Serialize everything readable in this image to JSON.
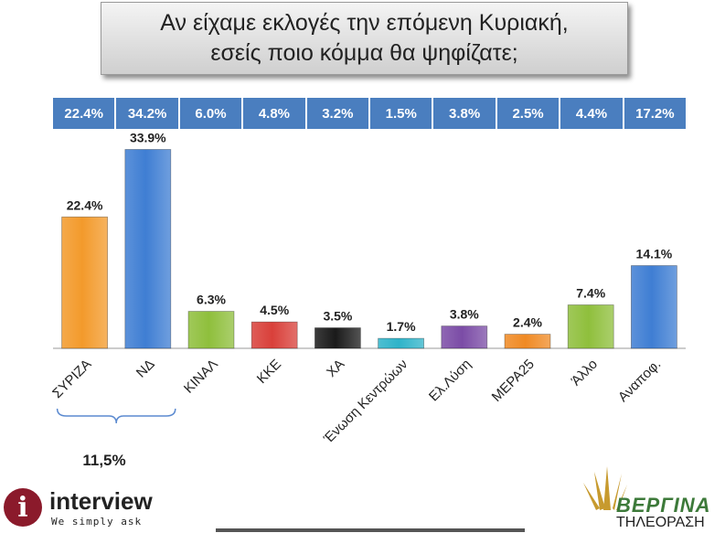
{
  "header": {
    "title_line1": "Αν είχαμε εκλογές την επόμενη Κυριακή,",
    "title_line2": "εσείς ποιο κόμμα θα ψηφίζατε;"
  },
  "previous_results": [
    "22.4%",
    "34.2%",
    "6.0%",
    "4.8%",
    "3.2%",
    "1.5%",
    "3.8%",
    "2.5%",
    "4.4%",
    "17.2%"
  ],
  "chart_data": {
    "type": "bar",
    "title": "Αν είχαμε εκλογές την επόμενη Κυριακή, εσείς ποιο κόμμα θα ψηφίζατε;",
    "categories": [
      "ΣΥΡΙΖΑ",
      "ΝΔ",
      "ΚΙΝΑΛ",
      "ΚΚΕ",
      "ΧΑ",
      "Ένωση Κεντρώων",
      "Ελ.Λύση",
      "ΜΕΡΑ25",
      "Άλλο",
      "Αναποφ."
    ],
    "values": [
      22.4,
      33.9,
      6.3,
      4.5,
      3.5,
      1.7,
      3.8,
      2.4,
      7.4,
      14.1
    ],
    "value_labels": [
      "22.4%",
      "33.9%",
      "6.3%",
      "4.5%",
      "3.5%",
      "1.7%",
      "3.8%",
      "2.4%",
      "7.4%",
      "14.1%"
    ],
    "colors": [
      "#f39a2b",
      "#3f7ed3",
      "#8fbf3c",
      "#d9403a",
      "#1a1a1a",
      "#2fb3c9",
      "#7b4ca6",
      "#f08a24",
      "#8fbf3c",
      "#3f7ed3"
    ],
    "ylim": [
      0,
      36
    ],
    "grid": false,
    "annotation": {
      "label": "11,5%",
      "spans": [
        "ΣΥΡΙΖΑ",
        "ΝΔ"
      ]
    }
  },
  "logos": {
    "left_name": "interview",
    "left_tagline": "We simply ask",
    "left_icon": "i",
    "right_name": "ΒΕΡΓΙΝΑ",
    "right_sub": "ΤΗΛΕΟΡΑΣΗ"
  }
}
